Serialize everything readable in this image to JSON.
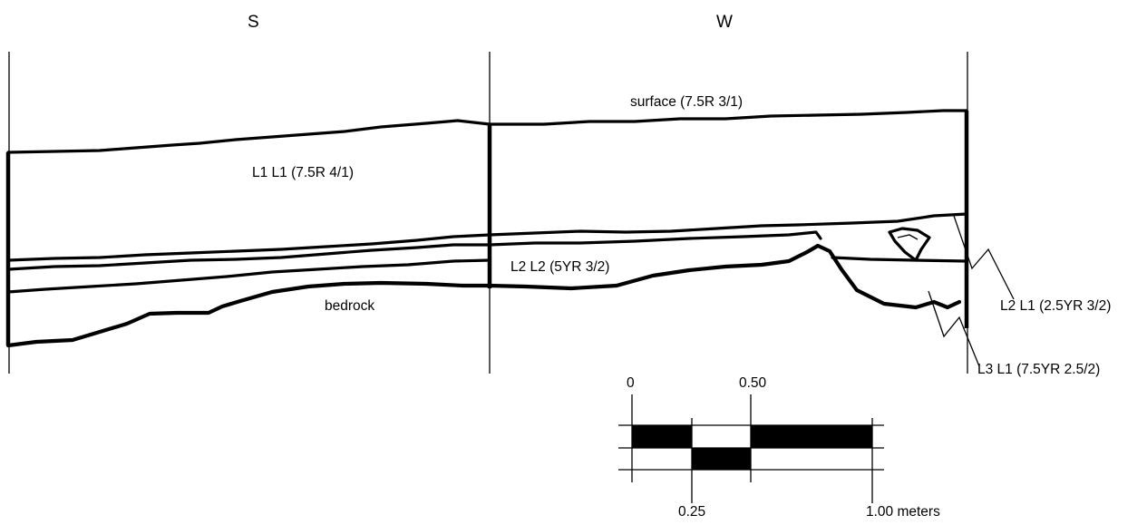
{
  "directions": {
    "south": "S",
    "west": "W"
  },
  "layers": {
    "surface": "surface (7.5R 3/1)",
    "l1_l1": "L1 L1 (7.5R 4/1)",
    "l2_l2": "L2 L2 (5YR 3/2)",
    "bedrock": "bedrock",
    "l2_l1": "L2 L1 (2.5YR 3/2)",
    "l3_l1": "L3 L1 (7.5YR 2.5/2)"
  },
  "scale_bar": {
    "tick_0": "0",
    "tick_025": "0.25",
    "tick_050": "0.50",
    "tick_100": "1.00 meters"
  }
}
